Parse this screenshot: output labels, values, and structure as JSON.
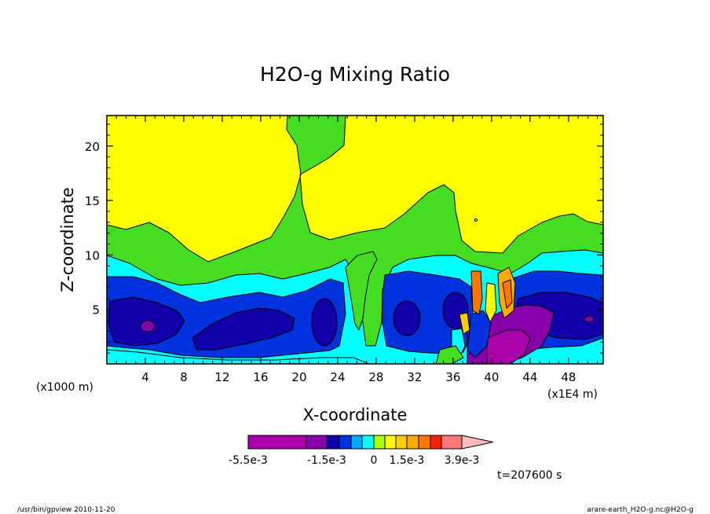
{
  "chart_data": {
    "type": "heatmap",
    "title": "H2O-g Mixing Ratio",
    "xlabel": "X-coordinate",
    "ylabel": "Z-coordinate",
    "x_unit_left": "(x1000 m)",
    "x_unit_right": "(x1E4 m)",
    "xlim": [
      0,
      51.6
    ],
    "ylim": [
      0,
      22.8
    ],
    "x_ticks": [
      "4",
      "8",
      "12",
      "16",
      "20",
      "24",
      "28",
      "32",
      "36",
      "40",
      "44",
      "48"
    ],
    "y_ticks": [
      "5",
      "10",
      "15",
      "20"
    ],
    "colorbar": {
      "colors": [
        "#aa00aa",
        "#8800aa",
        "#1100aa",
        "#0033dd",
        "#00aaff",
        "#00ffff",
        "#aaff00",
        "#ffff00",
        "#ffcc00",
        "#ffaa00",
        "#ff7700",
        "#ff2200",
        "#ff7777",
        "#ffbbbb"
      ],
      "labels": [
        "-5.5e-3",
        "-1.5e-3",
        "0",
        "1.5e-3",
        "3.9e-3"
      ]
    },
    "field_levels": [
      "cyan-low",
      "blue",
      "darkblue",
      "cyan",
      "green",
      "yellow"
    ],
    "time_label": "t=207600 s"
  },
  "footer": {
    "left": "/usr/bin/gpview   2010-11-20",
    "right": "arare-earth_H2O-g.nc@H2O-g"
  }
}
